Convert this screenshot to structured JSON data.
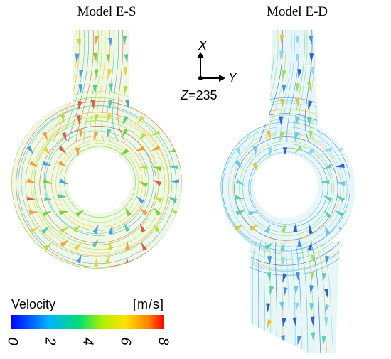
{
  "panels": [
    {
      "title": "Model E-S"
    },
    {
      "title": "Model E-D"
    }
  ],
  "axes": {
    "x": "X",
    "y": "Y",
    "z": "Z",
    "z_value": "=235"
  },
  "colorbar": {
    "label": "Velocity",
    "unit": "[m/s]",
    "ticks": [
      0,
      2,
      4,
      6,
      8
    ]
  }
}
